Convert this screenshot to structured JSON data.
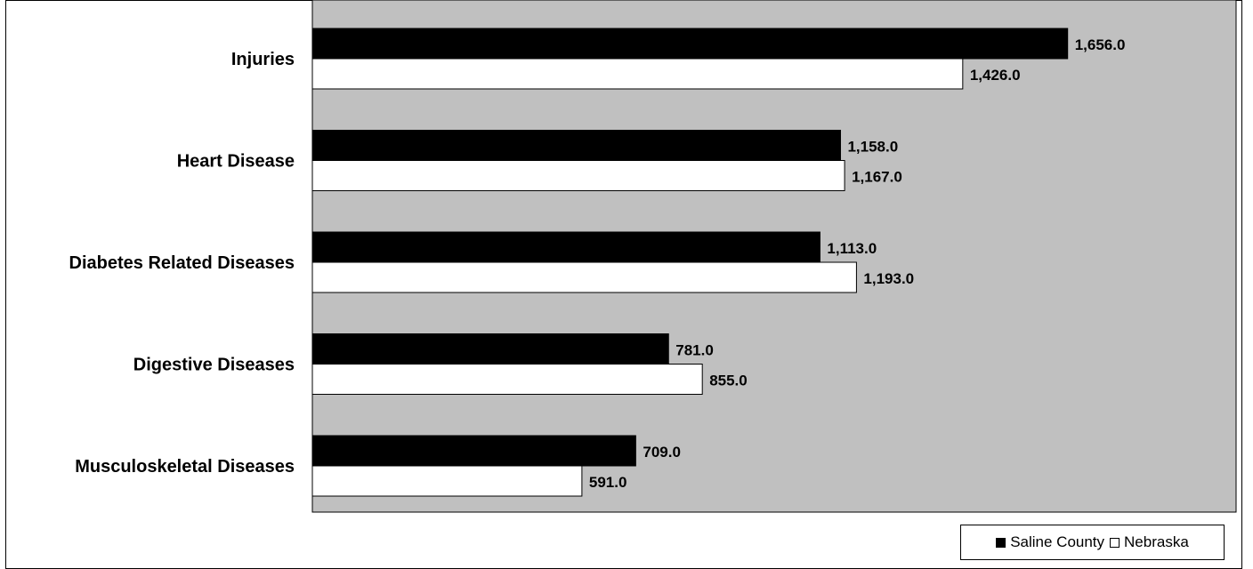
{
  "chart_data": {
    "type": "bar",
    "orientation": "horizontal",
    "categories": [
      "Injuries",
      "Heart Disease",
      "Diabetes Related Diseases",
      "Digestive Diseases",
      "Musculoskeletal Diseases"
    ],
    "series": [
      {
        "name": "Saline County",
        "values": [
          1656.0,
          1158.0,
          1113.0,
          781.0,
          709.0
        ],
        "labels": [
          "1,656.0",
          "1,158.0",
          "1,113.0",
          "781.0",
          "709.0"
        ],
        "color": "#000000"
      },
      {
        "name": "Nebraska",
        "values": [
          1426.0,
          1167.0,
          1193.0,
          855.0,
          591.0
        ],
        "labels": [
          "1,426.0",
          "1,167.0",
          "1,193.0",
          "855.0",
          "591.0"
        ],
        "color": "#ffffff"
      }
    ],
    "xlim": [
      0,
      2000
    ],
    "grid": false,
    "plot_background": "#c0c0c0",
    "legend_position": "bottom-right"
  }
}
